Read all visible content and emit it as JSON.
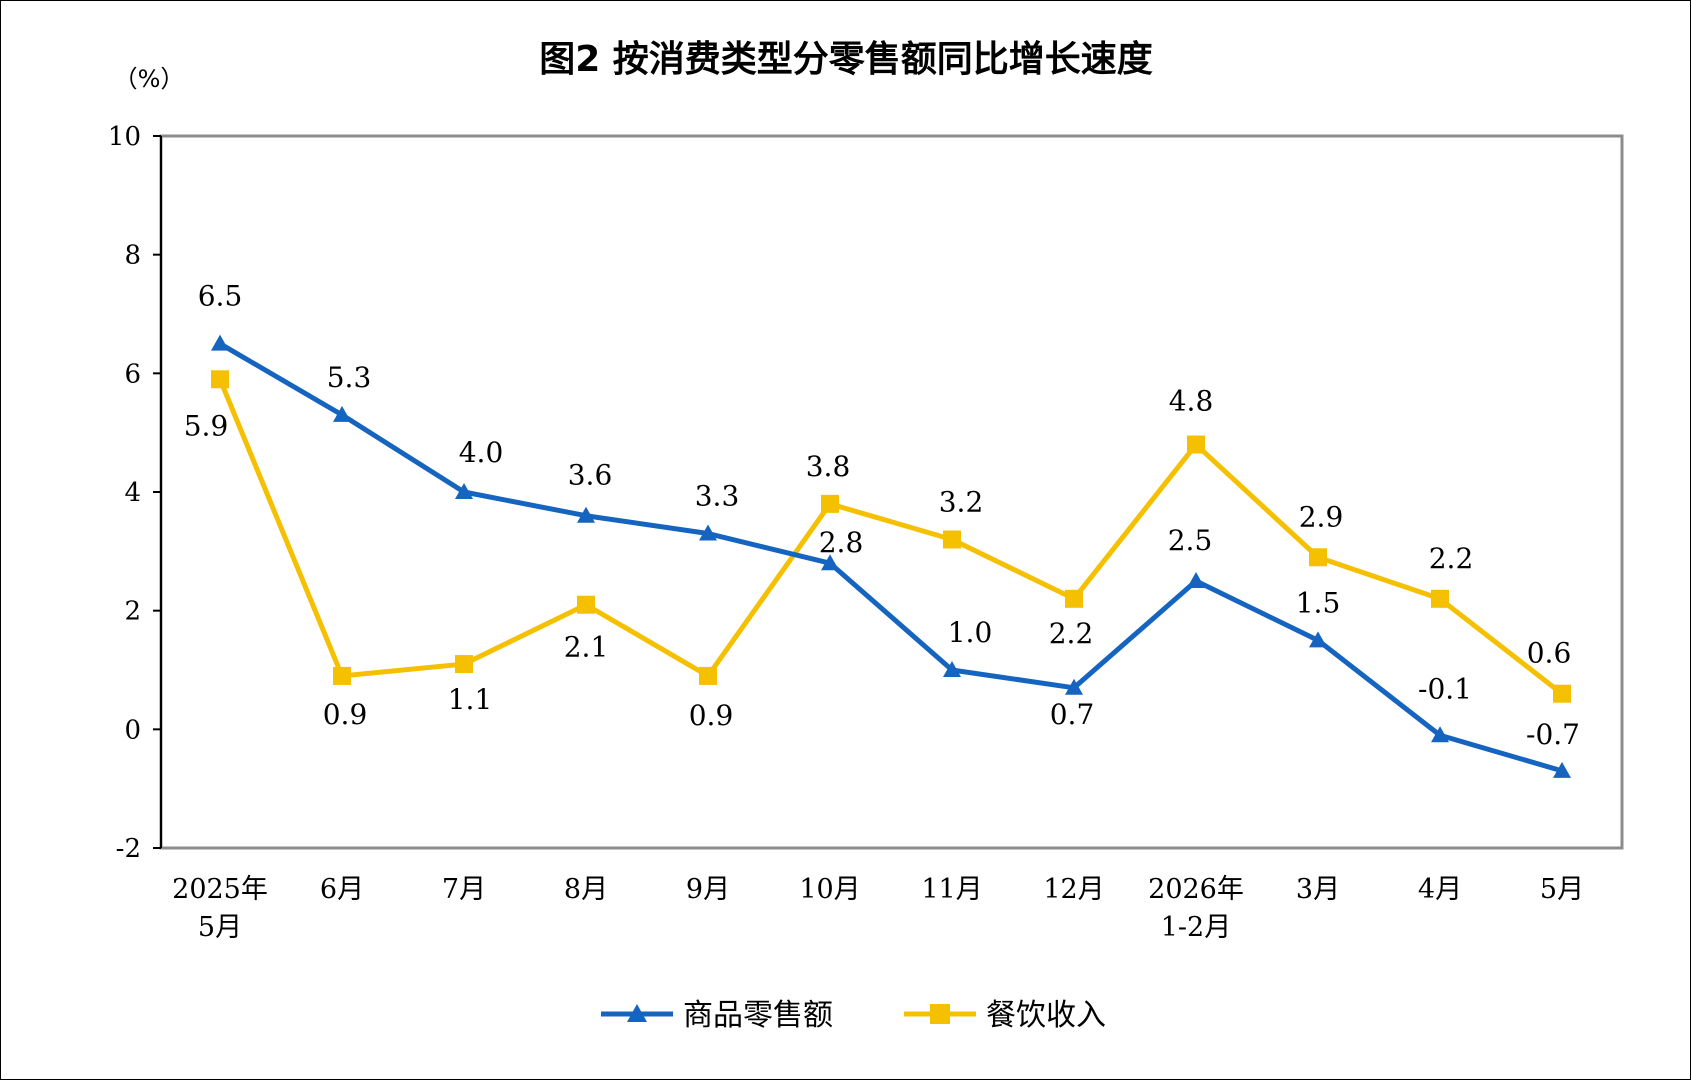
{
  "chart_data": {
    "type": "line",
    "title": "图2  按消费类型分零售额同比增长速度",
    "unit_label": "（%）",
    "ylim": [
      -2,
      10
    ],
    "yticks": [
      "-2",
      "0",
      "2",
      "4",
      "6",
      "8",
      "10"
    ],
    "categories": [
      [
        "2025年",
        "5月"
      ],
      [
        "6月"
      ],
      [
        "7月"
      ],
      [
        "8月"
      ],
      [
        "9月"
      ],
      [
        "10月"
      ],
      [
        "11月"
      ],
      [
        "12月"
      ],
      [
        "2026年",
        "1-2月"
      ],
      [
        "3月"
      ],
      [
        "4月"
      ],
      [
        "5月"
      ]
    ],
    "grid": false,
    "legend_position": "bottom",
    "series": [
      {
        "name": "商品零售额",
        "color": "#1565C0",
        "marker": "triangle",
        "values": [
          6.5,
          5.3,
          4.0,
          3.6,
          3.3,
          2.8,
          1.0,
          0.7,
          2.5,
          1.5,
          -0.1,
          -0.7
        ],
        "labels": [
          "6.5",
          "5.3",
          "4.0",
          "3.6",
          "3.3",
          "2.8",
          "1.0",
          "0.7",
          "2.5",
          "1.5",
          "-0.1",
          "-0.7"
        ]
      },
      {
        "name": "餐饮收入",
        "color": "#F5C000",
        "marker": "square",
        "values": [
          5.9,
          0.9,
          1.1,
          2.1,
          0.9,
          3.8,
          3.2,
          2.2,
          4.8,
          2.9,
          2.2,
          0.6
        ],
        "labels": [
          "5.9",
          "0.9",
          "1.1",
          "2.1",
          "0.9",
          "3.8",
          "3.2",
          "2.2",
          "4.8",
          "2.9",
          "2.2",
          "0.6"
        ]
      }
    ]
  }
}
